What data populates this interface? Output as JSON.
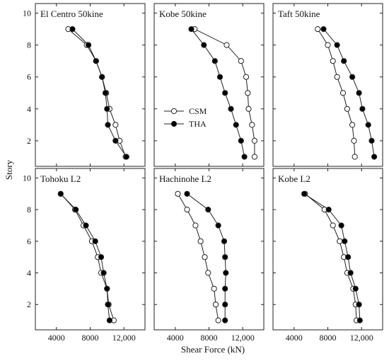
{
  "figure": {
    "ylabel": "Story",
    "xlabel": "Shear Force (kN)",
    "xlim": [
      1500,
      14500
    ],
    "ylim": [
      0.4,
      10.6
    ],
    "xticks": [
      4000,
      8000,
      12000
    ],
    "xtick_labels": [
      "4000",
      "8000",
      "12,000"
    ],
    "yticks": [
      2,
      4,
      6,
      8,
      10
    ],
    "ytick_labels": [
      "2",
      "4",
      "6",
      "8",
      "10"
    ],
    "series_names": [
      "CSM",
      "THA"
    ]
  },
  "chart_data": [
    {
      "type": "line",
      "title": "El Centro 50kine",
      "y": [
        1,
        2,
        3,
        4,
        5,
        6,
        7,
        8,
        9
      ],
      "xlim": [
        1500,
        14500
      ],
      "ylim": [
        0.4,
        10.6
      ],
      "series": [
        {
          "name": "CSM",
          "marker": "open-circle",
          "x": [
            12200,
            11500,
            11000,
            10300,
            9900,
            9400,
            8700,
            7600,
            5400
          ]
        },
        {
          "name": "THA",
          "marker": "filled-circle",
          "x": [
            12300,
            11000,
            10100,
            10000,
            9800,
            9400,
            8700,
            7800,
            5900
          ]
        }
      ]
    },
    {
      "type": "line",
      "title": "Kobe 50kine",
      "y": [
        1,
        2,
        3,
        4,
        5,
        6,
        7,
        8,
        9
      ],
      "xlim": [
        1500,
        14500
      ],
      "ylim": [
        0.4,
        10.6
      ],
      "series": [
        {
          "name": "CSM",
          "marker": "open-circle",
          "x": [
            13400,
            13400,
            13100,
            12700,
            12600,
            12400,
            11800,
            10100,
            6300
          ]
        },
        {
          "name": "THA",
          "marker": "filled-circle",
          "x": [
            12200,
            11800,
            11200,
            10600,
            9900,
            9300,
            8700,
            7400,
            5900
          ]
        }
      ]
    },
    {
      "type": "line",
      "title": "Taft 50kine",
      "y": [
        1,
        2,
        3,
        4,
        5,
        6,
        7,
        8,
        9
      ],
      "xlim": [
        1500,
        14500
      ],
      "ylim": [
        0.4,
        10.6
      ],
      "series": [
        {
          "name": "CSM",
          "marker": "open-circle",
          "x": [
            11200,
            11100,
            10900,
            10300,
            9800,
            9100,
            8600,
            8000,
            6800
          ]
        },
        {
          "name": "THA",
          "marker": "filled-circle",
          "x": [
            13500,
            13200,
            12800,
            12100,
            11700,
            10900,
            9900,
            9100,
            7500
          ]
        }
      ]
    },
    {
      "type": "line",
      "title": "Tohoku L2",
      "y": [
        1,
        2,
        3,
        4,
        5,
        6,
        7,
        8,
        9
      ],
      "xlim": [
        1500,
        14500
      ],
      "ylim": [
        0.4,
        10.6
      ],
      "series": [
        {
          "name": "CSM",
          "marker": "open-circle",
          "x": [
            10800,
            10200,
            10000,
            9300,
            8900,
            8200,
            7200,
            6200,
            4500
          ]
        },
        {
          "name": "THA",
          "marker": "filled-circle",
          "x": [
            10300,
            10100,
            10000,
            9600,
            9300,
            8600,
            7500,
            6300,
            4500
          ]
        }
      ]
    },
    {
      "type": "line",
      "title": "Hachinohe L2",
      "y": [
        1,
        2,
        3,
        4,
        5,
        6,
        7,
        8,
        9
      ],
      "xlim": [
        1500,
        14500
      ],
      "ylim": [
        0.4,
        10.6
      ],
      "series": [
        {
          "name": "CSM",
          "marker": "open-circle",
          "x": [
            9100,
            8800,
            8600,
            7900,
            7500,
            7000,
            6400,
            5400,
            4300
          ]
        },
        {
          "name": "THA",
          "marker": "filled-circle",
          "x": [
            9900,
            9900,
            9900,
            10000,
            9900,
            9800,
            9100,
            7900,
            5400
          ]
        }
      ]
    },
    {
      "type": "line",
      "title": "Kobe L2",
      "y": [
        1,
        2,
        3,
        4,
        5,
        6,
        7,
        8,
        9
      ],
      "xlim": [
        1500,
        14500
      ],
      "ylim": [
        0.4,
        10.6
      ],
      "series": [
        {
          "name": "CSM",
          "marker": "open-circle",
          "x": [
            11400,
            11300,
            11000,
            10300,
            9900,
            9400,
            8600,
            7600,
            5300
          ]
        },
        {
          "name": "THA",
          "marker": "filled-circle",
          "x": [
            11800,
            11700,
            11300,
            10700,
            10400,
            10000,
            9600,
            8100,
            5200
          ]
        }
      ]
    }
  ]
}
